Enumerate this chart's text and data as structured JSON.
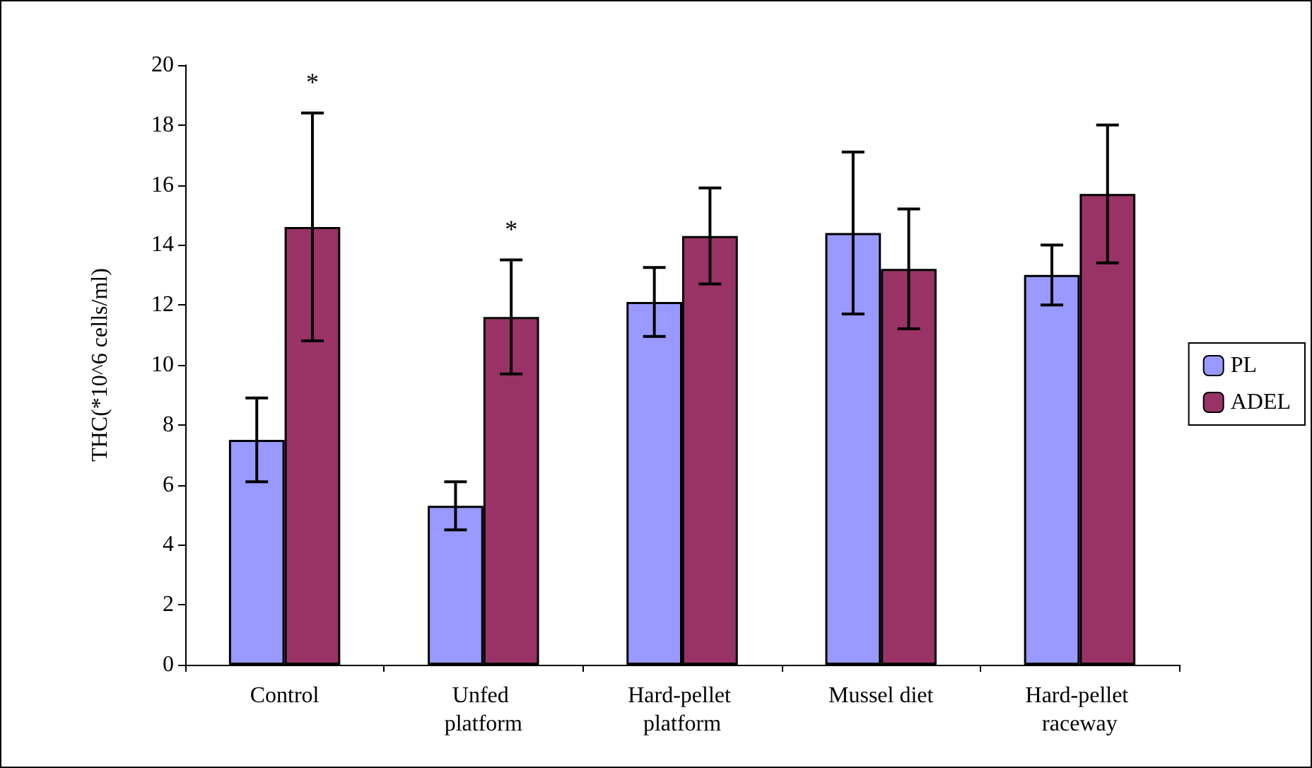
{
  "chart_data": {
    "type": "bar",
    "ylabel": "THC(*10^6 cells/ml)",
    "categories": [
      "Control",
      "Unfed platform",
      "Hard-pellet platform",
      "Mussel diet",
      "Hard-pellet raceway"
    ],
    "series": [
      {
        "name": "PL",
        "color": "#9999ff",
        "values": [
          7.5,
          5.3,
          12.1,
          14.4,
          13.0
        ],
        "errors": [
          1.4,
          0.8,
          1.15,
          2.7,
          1.0
        ]
      },
      {
        "name": "ADEL",
        "color": "#993366",
        "values": [
          14.6,
          11.6,
          14.3,
          13.2,
          15.7
        ],
        "errors": [
          3.8,
          1.9,
          1.6,
          2.0,
          2.3
        ]
      }
    ],
    "annotations": [
      "*",
      "*"
    ],
    "ylim": [
      0,
      20
    ],
    "yticks": [
      0,
      2,
      4,
      6,
      8,
      10,
      12,
      14,
      16,
      18,
      20
    ],
    "grid": false,
    "legend": "right"
  }
}
